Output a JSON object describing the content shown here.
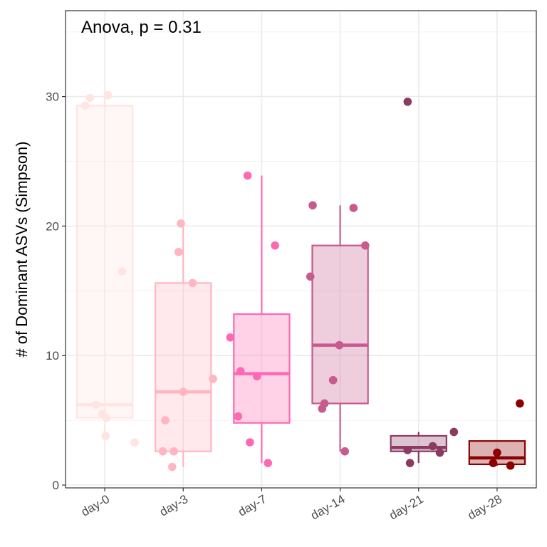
{
  "chart_data": {
    "type": "box",
    "annotation": "Anova, p = 0.31",
    "xlabel": "",
    "ylabel": "# of Dominant ASVs (Simpson)",
    "ylim": [
      0,
      36.5
    ],
    "yticks": [
      0,
      10,
      20,
      30
    ],
    "grid": true,
    "categories": [
      "day-0",
      "day-3",
      "day-7",
      "day-14",
      "day-21",
      "day-28"
    ],
    "colors": [
      "#ffe4e1",
      "#ffb6c1",
      "#ff69b4",
      "#c75a8e",
      "#8b3a62",
      "#8b0000"
    ],
    "boxes": [
      {
        "category": "day-0",
        "whisker_low": 3.3,
        "q1": 5.2,
        "median": 6.2,
        "q3": 29.3,
        "whisker_high": 30.1
      },
      {
        "category": "day-3",
        "whisker_low": 1.4,
        "q1": 2.6,
        "median": 7.2,
        "q3": 15.6,
        "whisker_high": 20.2
      },
      {
        "category": "day-7",
        "whisker_low": 1.7,
        "q1": 4.8,
        "median": 8.6,
        "q3": 13.2,
        "whisker_high": 23.9
      },
      {
        "category": "day-14",
        "whisker_low": 2.6,
        "q1": 6.3,
        "median": 10.8,
        "q3": 18.5,
        "whisker_high": 21.6
      },
      {
        "category": "day-21",
        "whisker_low": 1.7,
        "q1": 2.6,
        "median": 2.9,
        "q3": 3.8,
        "whisker_high": 4.1
      },
      {
        "category": "day-28",
        "whisker_low": 1.5,
        "q1": 1.6,
        "median": 2.1,
        "q3": 3.4,
        "whisker_high": 3.4
      }
    ],
    "outliers": [
      {
        "category": "day-21",
        "value": 29.6
      },
      {
        "category": "day-28",
        "value": 6.3
      }
    ],
    "points": [
      {
        "category": "day-0",
        "jitter": -0.25,
        "value": 29.3
      },
      {
        "category": "day-0",
        "jitter": -0.19,
        "value": 29.9
      },
      {
        "category": "day-0",
        "jitter": 0.04,
        "value": 30.1
      },
      {
        "category": "day-0",
        "jitter": 0.22,
        "value": 16.5
      },
      {
        "category": "day-0",
        "jitter": -0.11,
        "value": 6.2
      },
      {
        "category": "day-0",
        "jitter": -0.03,
        "value": 5.5
      },
      {
        "category": "day-0",
        "jitter": 0.02,
        "value": 5.2
      },
      {
        "category": "day-0",
        "jitter": 0.01,
        "value": 3.8
      },
      {
        "category": "day-0",
        "jitter": 0.38,
        "value": 3.3
      },
      {
        "category": "day-3",
        "jitter": -0.03,
        "value": 20.2
      },
      {
        "category": "day-3",
        "jitter": -0.06,
        "value": 18.0
      },
      {
        "category": "day-3",
        "jitter": 0.12,
        "value": 15.6
      },
      {
        "category": "day-3",
        "jitter": 0.38,
        "value": 8.2
      },
      {
        "category": "day-3",
        "jitter": 0.0,
        "value": 7.2
      },
      {
        "category": "day-3",
        "jitter": -0.23,
        "value": 5.0
      },
      {
        "category": "day-3",
        "jitter": -0.26,
        "value": 2.6
      },
      {
        "category": "day-3",
        "jitter": -0.12,
        "value": 2.6
      },
      {
        "category": "day-3",
        "jitter": -0.14,
        "value": 1.4
      },
      {
        "category": "day-7",
        "jitter": -0.18,
        "value": 23.9
      },
      {
        "category": "day-7",
        "jitter": 0.17,
        "value": 18.5
      },
      {
        "category": "day-7",
        "jitter": -0.4,
        "value": 11.4
      },
      {
        "category": "day-7",
        "jitter": -0.27,
        "value": 8.8
      },
      {
        "category": "day-7",
        "jitter": -0.06,
        "value": 8.4
      },
      {
        "category": "day-7",
        "jitter": -0.3,
        "value": 5.3
      },
      {
        "category": "day-7",
        "jitter": -0.15,
        "value": 3.3
      },
      {
        "category": "day-7",
        "jitter": 0.08,
        "value": 1.7
      },
      {
        "category": "day-14",
        "jitter": -0.35,
        "value": 21.6
      },
      {
        "category": "day-14",
        "jitter": 0.17,
        "value": 21.4
      },
      {
        "category": "day-14",
        "jitter": 0.32,
        "value": 18.5
      },
      {
        "category": "day-14",
        "jitter": -0.38,
        "value": 16.1
      },
      {
        "category": "day-14",
        "jitter": -0.01,
        "value": 10.8
      },
      {
        "category": "day-14",
        "jitter": -0.09,
        "value": 8.1
      },
      {
        "category": "day-14",
        "jitter": -0.2,
        "value": 6.3
      },
      {
        "category": "day-14",
        "jitter": -0.23,
        "value": 5.9
      },
      {
        "category": "day-14",
        "jitter": 0.06,
        "value": 2.6
      },
      {
        "category": "day-21",
        "jitter": -0.14,
        "value": 29.6
      },
      {
        "category": "day-21",
        "jitter": 0.45,
        "value": 4.1
      },
      {
        "category": "day-21",
        "jitter": 0.18,
        "value": 3.0
      },
      {
        "category": "day-21",
        "jitter": -0.14,
        "value": 2.7
      },
      {
        "category": "day-21",
        "jitter": 0.27,
        "value": 2.5
      },
      {
        "category": "day-21",
        "jitter": -0.11,
        "value": 1.7
      },
      {
        "category": "day-28",
        "jitter": 0.29,
        "value": 6.3
      },
      {
        "category": "day-28",
        "jitter": 0.0,
        "value": 2.5
      },
      {
        "category": "day-28",
        "jitter": -0.05,
        "value": 1.7
      },
      {
        "category": "day-28",
        "jitter": 0.17,
        "value": 1.5
      }
    ]
  }
}
